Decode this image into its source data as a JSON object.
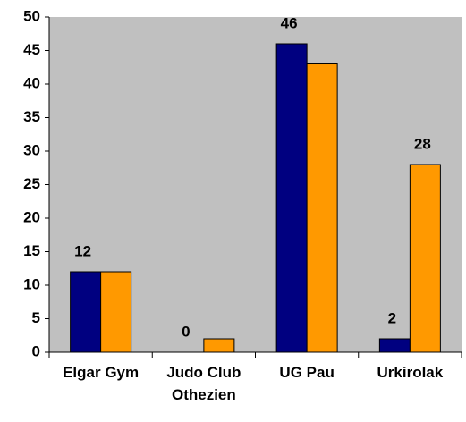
{
  "chart_data": {
    "type": "bar",
    "categories": [
      "Elgar Gym",
      "Judo Club Othezien",
      "UG Pau",
      "Urkirolak"
    ],
    "series": [
      {
        "color": "#000080",
        "values": [
          12,
          0,
          46,
          2
        ],
        "value_labels": [
          "12",
          "0",
          "46",
          "2"
        ]
      },
      {
        "color": "#ff9900",
        "values": [
          12,
          2,
          43,
          28
        ],
        "value_labels": [
          null,
          null,
          null,
          "28"
        ]
      }
    ],
    "ylim": [
      0,
      50
    ],
    "yticks": [
      0,
      5,
      10,
      15,
      20,
      25,
      30,
      35,
      40,
      45,
      50
    ],
    "plot_background": "#c0c0c0"
  }
}
